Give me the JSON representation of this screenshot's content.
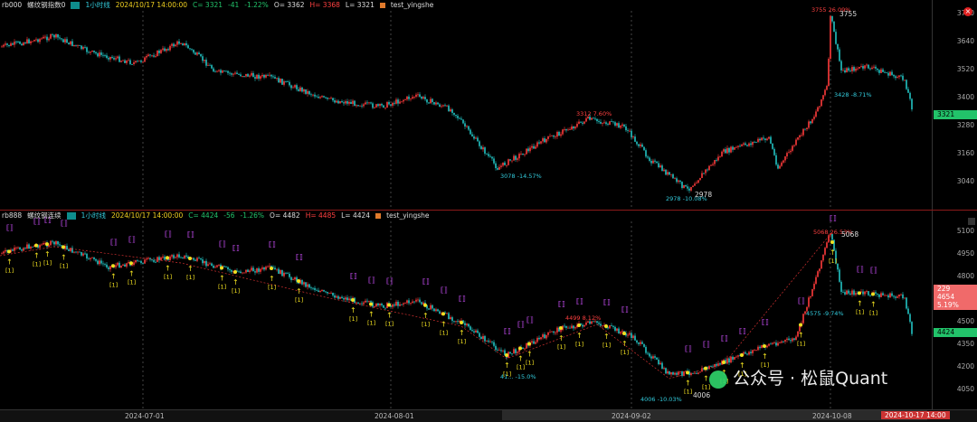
{
  "top": {
    "symbol": "rb000",
    "name": "螺纹钢指数0",
    "period": "1小时线",
    "datetime": "2024/10/17 14:00:00",
    "close": "C= 3321",
    "change": "-41",
    "pct": "-1.22%",
    "open": "O= 3362",
    "high": "H= 3368",
    "low": "L= 3321",
    "indicator": "test_yingshe",
    "axis": [
      "3760",
      "3640",
      "3520",
      "3400",
      "3280",
      "3160",
      "3040"
    ],
    "current_price": "3321",
    "annotations": {
      "peak": "3755 26.09%",
      "peak_label": "3755",
      "a1": "3078 -14.57%",
      "a2": "3312 7.60%",
      "a3": "2978 -10.08%",
      "a3_label": "2978",
      "a4": "3428 -8.71%"
    }
  },
  "bottom": {
    "symbol": "rb888",
    "name": "螺纹钢连续",
    "period": "1小时线",
    "datetime": "2024/10/17 14:00:00",
    "close": "C= 4424",
    "change": "-56",
    "pct": "-1.26%",
    "open": "O= 4482",
    "high": "H= 4485",
    "low": "L= 4424",
    "indicator": "test_yingshe",
    "axis": [
      "5100",
      "4950",
      "4800",
      "4650",
      "4500",
      "4350",
      "4200",
      "4050"
    ],
    "current_price": "4424",
    "hover_box": [
      "229",
      "4654",
      "5.19%"
    ],
    "signal_label": "[1]",
    "annotations": {
      "peak": "5068 26.53%",
      "peak_label": "5068",
      "b1": "4499 8.12%",
      "b2": "4575 -9.74%",
      "b3": "4006 -10.03%",
      "b3_label": "4006",
      "b4": "41... -15.0%"
    }
  },
  "xaxis": [
    "2024-07-01",
    "2024-08-01",
    "2024-09-02",
    "2024-10-08"
  ],
  "xaxis_current": "2024-10-17 14:00",
  "watermark": "公众号 · 松鼠Quant",
  "colors": {
    "up": "#ff3b3b",
    "down": "#22c3c3",
    "accent": "#e02020",
    "price_tag": "#22c36a"
  }
}
